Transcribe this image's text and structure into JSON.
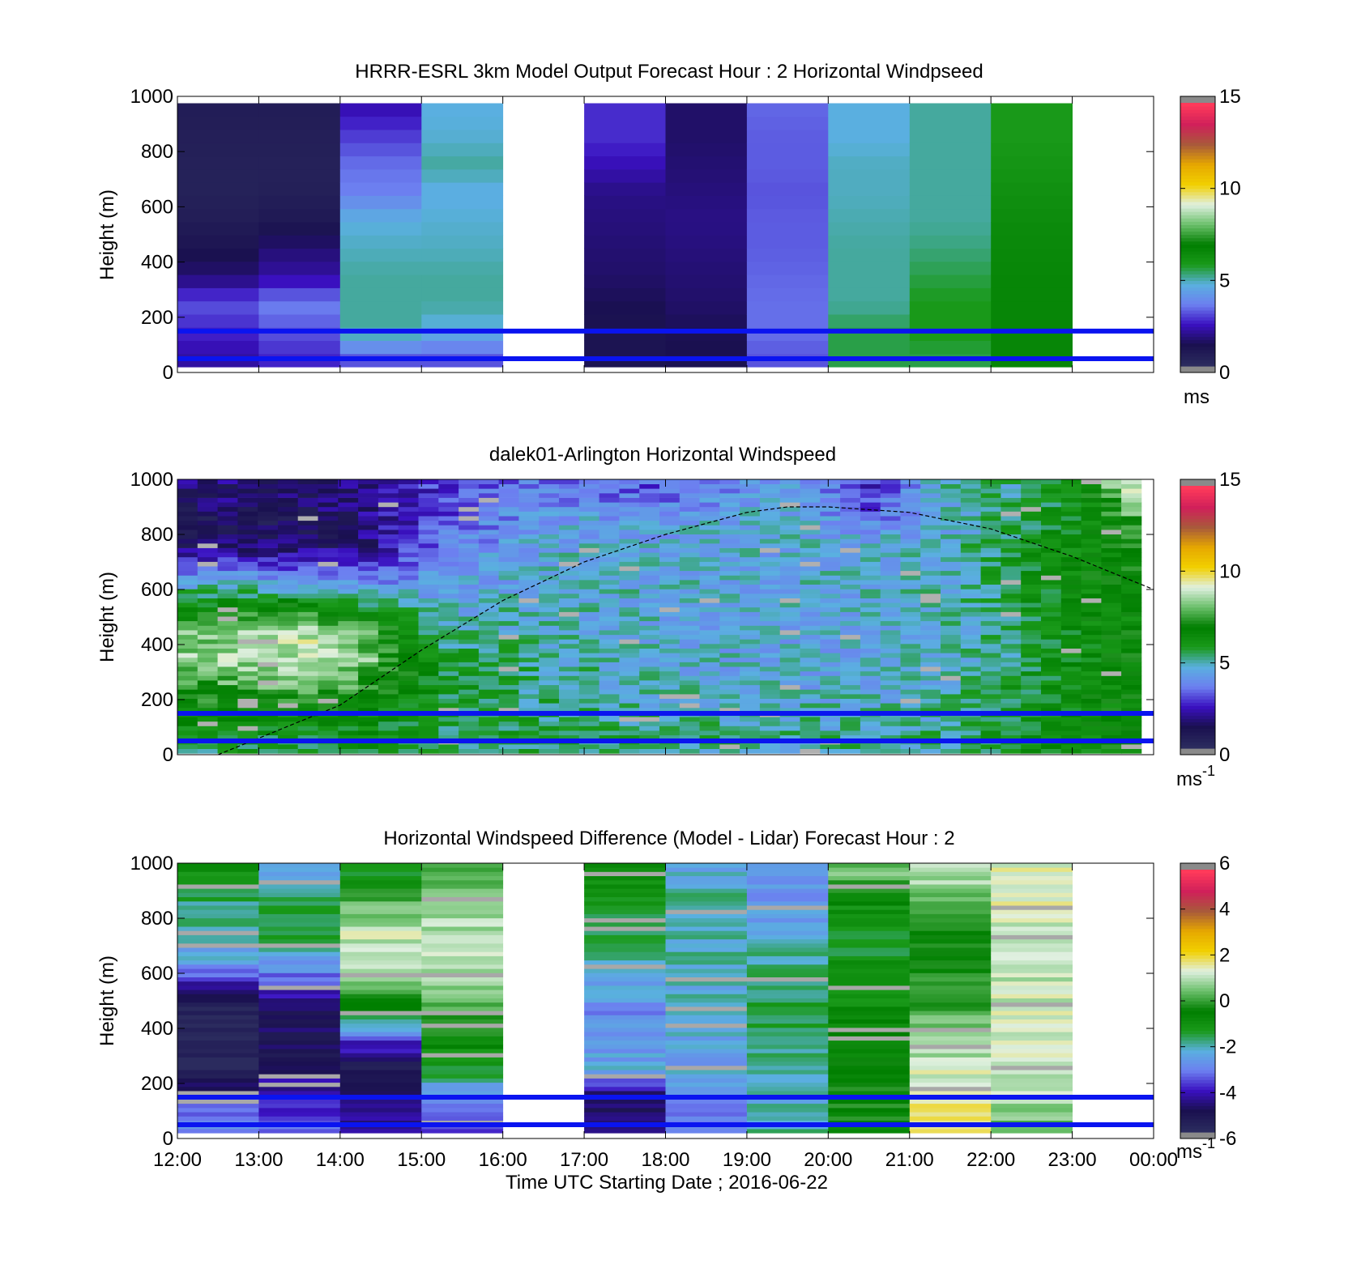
{
  "chart_data": [
    {
      "type": "heatmap",
      "title": "HRRR-ESRL 3km Model Output   Forecast Hour : 2 Horizontal Windpseed",
      "ylabel": "Height (m)",
      "ylim": [
        0,
        1000
      ],
      "yticks": [
        "0",
        "200",
        "400",
        "600",
        "800",
        "1000"
      ],
      "xlim_hours": [
        12,
        24
      ],
      "columns": [
        {
          "hour": 12,
          "values": [
            2.0,
            2.5,
            3.0,
            1.5,
            1.0,
            0.6,
            0.4,
            0.4,
            0.5,
            0.6
          ]
        },
        {
          "hour": 13,
          "values": [
            2.5,
            3.0,
            3.5,
            2.0,
            1.5,
            0.8,
            0.5,
            0.4,
            0.5,
            0.6
          ]
        },
        {
          "hour": 14,
          "values": [
            3.0,
            5.0,
            5.0,
            5.0,
            4.8,
            4.6,
            3.5,
            3.3,
            2.8,
            2.2
          ]
        },
        {
          "hour": 15,
          "values": [
            3.0,
            4.5,
            5.0,
            5.0,
            4.8,
            4.7,
            4.5,
            5.0,
            4.7,
            4.6
          ]
        },
        {
          "hour": 16,
          "values": null
        },
        {
          "hour": 17,
          "values": [
            1.0,
            1.0,
            1.2,
            1.4,
            1.5,
            1.6,
            1.7,
            2.2,
            2.6,
            2.6
          ]
        },
        {
          "hour": 18,
          "values": [
            1.1,
            1.2,
            1.4,
            1.5,
            1.6,
            1.7,
            1.6,
            1.5,
            1.4,
            1.4
          ]
        },
        {
          "hour": 19,
          "values": [
            3.0,
            3.3,
            3.3,
            3.2,
            3.1,
            3.1,
            3.0,
            3.1,
            3.1,
            3.2
          ]
        },
        {
          "hour": 20,
          "values": [
            5.5,
            5.5,
            5.0,
            5.0,
            5.0,
            4.9,
            4.8,
            4.8,
            4.6,
            4.6
          ]
        },
        {
          "hour": 21,
          "values": [
            5.5,
            5.8,
            5.8,
            5.5,
            5.2,
            5.0,
            5.0,
            5.0,
            5.0,
            5.0
          ]
        },
        {
          "hour": 22,
          "values": [
            6.6,
            6.6,
            6.6,
            6.6,
            6.5,
            6.4,
            6.2,
            6.0,
            5.8,
            5.8
          ]
        },
        {
          "hour": 23,
          "values": null
        }
      ],
      "reference_lines_m": [
        50,
        150
      ],
      "colorbar": {
        "ticks": [
          "0",
          "5",
          "10",
          "15"
        ],
        "range": [
          0,
          15
        ],
        "unit_label": "ms"
      }
    },
    {
      "type": "heatmap",
      "title": "dalek01-Arlington  Horizontal Windspeed",
      "ylabel": "Height (m)",
      "ylim": [
        0,
        1000
      ],
      "yticks": [
        "0",
        "200",
        "400",
        "600",
        "800",
        "1000"
      ],
      "xlim_hours": [
        12,
        24
      ],
      "profile_samples_hours": [
        12.25,
        13.5,
        14.25,
        15.25,
        16.5,
        18.0,
        19.5,
        20.5,
        21.5,
        22.5,
        23.25,
        23.75
      ],
      "profiles": [
        [
          5.5,
          6.5,
          7.5,
          8.5,
          8.0,
          6.0,
          4.0,
          1.5,
          1.0,
          1.5
        ],
        [
          5.5,
          6.5,
          8.0,
          9.0,
          9.0,
          6.5,
          3.5,
          1.5,
          1.0,
          1.5
        ],
        [
          6.0,
          6.5,
          7.5,
          8.5,
          8.0,
          5.5,
          3.0,
          1.6,
          1.5,
          1.8
        ],
        [
          5.5,
          5.5,
          5.8,
          5.8,
          5.0,
          4.5,
          4.0,
          3.5,
          3.0,
          2.8
        ],
        [
          5.5,
          5.4,
          5.2,
          5.0,
          4.8,
          4.8,
          4.6,
          4.5,
          4.2,
          3.5
        ],
        [
          5.2,
          5.0,
          4.6,
          4.6,
          4.5,
          4.6,
          4.5,
          4.4,
          4.2,
          3.0
        ],
        [
          5.0,
          4.8,
          4.5,
          4.4,
          4.4,
          4.5,
          4.6,
          4.5,
          4.6,
          4.5
        ],
        [
          5.0,
          4.8,
          4.5,
          4.4,
          4.4,
          4.5,
          4.6,
          4.6,
          3.5,
          2.5
        ],
        [
          5.2,
          5.0,
          4.8,
          4.7,
          4.7,
          4.8,
          4.8,
          4.8,
          4.6,
          4.8
        ],
        [
          6.0,
          6.0,
          5.8,
          5.6,
          5.6,
          5.8,
          6.0,
          5.8,
          5.6,
          5.2
        ],
        [
          6.5,
          6.6,
          6.5,
          6.4,
          6.4,
          6.5,
          6.6,
          6.5,
          6.2,
          7.0
        ],
        [
          6.8,
          6.8,
          6.6,
          6.6,
          6.6,
          6.7,
          6.8,
          7.0,
          7.5,
          9.0
        ]
      ],
      "reference_lines_m": [
        50,
        150
      ],
      "boundary_layer_curve": {
        "x_hours": [
          12.5,
          14,
          15,
          16,
          17,
          18,
          19,
          19.5,
          20,
          21,
          22,
          23,
          24
        ],
        "y_m": [
          0,
          180,
          380,
          560,
          700,
          800,
          880,
          900,
          900,
          880,
          820,
          720,
          600
        ]
      },
      "colorbar": {
        "ticks": [
          "0",
          "5",
          "10",
          "15"
        ],
        "range": [
          0,
          15
        ],
        "unit_label": "ms",
        "unit_sup": "-1"
      }
    },
    {
      "type": "heatmap",
      "title": "Horizontal Windspeed Difference (Model - Lidar) Forecast Hour : 2",
      "ylabel": "Height (m)",
      "xlabel": "Time UTC  Starting Date ; 2016-06-22",
      "ylim": [
        0,
        1000
      ],
      "yticks": [
        "0",
        "200",
        "400",
        "600",
        "800",
        "1000"
      ],
      "xticks": [
        "12:00",
        "13:00",
        "14:00",
        "15:00",
        "16:00",
        "17:00",
        "18:00",
        "19:00",
        "20:00",
        "21:00",
        "22:00",
        "23:00",
        "00:00"
      ],
      "xlim_hours": [
        12,
        24
      ],
      "columns": [
        {
          "hour": 12,
          "values": [
            -3.0,
            -4.0,
            -6.0,
            -6.0,
            -6.0,
            -4.5,
            -2.5,
            -2.2,
            -1.8,
            -1.2
          ]
        },
        {
          "hour": 13,
          "values": [
            -3.5,
            -4.0,
            -5.0,
            -5.2,
            -5.0,
            -4.0,
            -2.5,
            -1.5,
            -1.5,
            -2.8
          ]
        },
        {
          "hour": 14,
          "values": [
            -4.5,
            -4.5,
            -5.5,
            -4.0,
            -1.2,
            0.5,
            1.0,
            1.2,
            0.3,
            -1.2
          ]
        },
        {
          "hour": 15,
          "values": [
            -4.0,
            -3.0,
            -1.5,
            -0.8,
            0.2,
            0.6,
            1.0,
            1.0,
            0.8,
            0.3
          ]
        },
        {
          "hour": 16,
          "values": null
        },
        {
          "hour": 17,
          "values": [
            -4.8,
            -5.0,
            -2.5,
            -2.8,
            -3.0,
            -2.5,
            -2.0,
            -1.8,
            -1.5,
            -1.0
          ]
        },
        {
          "hour": 18,
          "values": [
            -3.0,
            -3.0,
            -2.5,
            -2.5,
            -2.3,
            -2.3,
            -2.2,
            -2.0,
            -2.0,
            -2.3
          ]
        },
        {
          "hour": 19,
          "values": [
            -2.0,
            -2.2,
            -1.8,
            -1.7,
            -1.6,
            -1.7,
            -1.9,
            -2.5,
            -2.8,
            -3.0
          ]
        },
        {
          "hour": 20,
          "values": [
            -0.5,
            -0.4,
            -0.6,
            -0.8,
            -0.9,
            -1.0,
            -1.2,
            -1.4,
            -1.0,
            0.5
          ]
        },
        {
          "hour": 21,
          "values": [
            1.8,
            1.5,
            1.3,
            0.8,
            0.3,
            -0.2,
            -0.5,
            -0.3,
            0.2,
            1.0
          ]
        },
        {
          "hour": 22,
          "values": [
            0.5,
            1.0,
            1.1,
            1.2,
            1.2,
            1.2,
            1.2,
            1.3,
            1.4,
            1.4
          ]
        },
        {
          "hour": 23,
          "values": null
        }
      ],
      "reference_lines_m": [
        50,
        150
      ],
      "colorbar": {
        "ticks": [
          "-6",
          "-4",
          "-2",
          "0",
          "2",
          "4",
          "6"
        ],
        "range": [
          -6,
          6
        ],
        "unit_label": "ms",
        "unit_sup": "-1"
      }
    }
  ],
  "colors": {
    "reference_line": "#0a14f0",
    "missing": "#ffffff",
    "bad": "#8a8a8a",
    "colormap_stops": [
      "#2b2b5e",
      "#1a1050",
      "#3a10c0",
      "#6c7ff0",
      "#5ab0e0",
      "#1a9a1a",
      "#007e00",
      "#6abf6a",
      "#e0f0e0",
      "#f2d000",
      "#e6a800",
      "#a85a3a",
      "#d0205a",
      "#ff3a5a"
    ]
  }
}
